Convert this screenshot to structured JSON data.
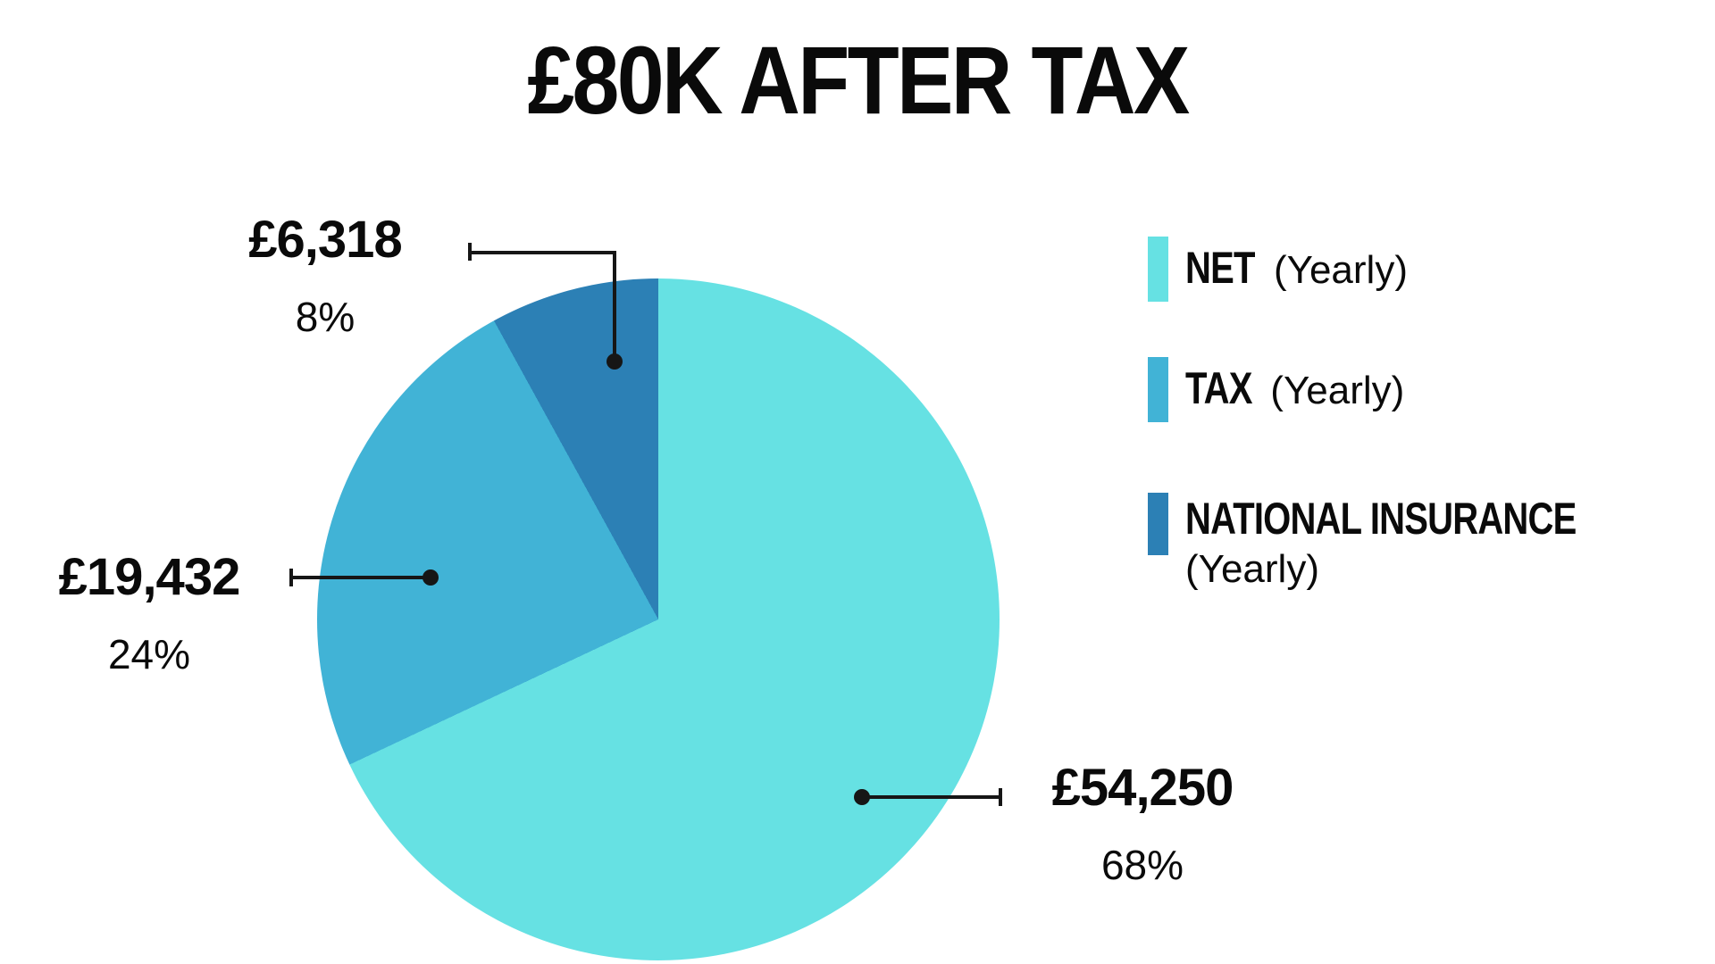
{
  "title": "£80K AFTER TAX",
  "chart_data": {
    "type": "pie",
    "title": "£80K AFTER TAX",
    "currency": "GBP",
    "start_angle_deg": 0,
    "direction": "clockwise",
    "legend_position": "right",
    "background": "#ffffff",
    "leader_line_color": "#161616",
    "slices": [
      {
        "label": "NET",
        "period": "(Yearly)",
        "value": 54250,
        "display_value": "£54,250",
        "pct": 68,
        "pct_label": "68%",
        "color": "#66E1E3"
      },
      {
        "label": "TAX",
        "period": "(Yearly)",
        "value": 19432,
        "display_value": "£19,432",
        "pct": 24,
        "pct_label": "24%",
        "color": "#41B3D6"
      },
      {
        "label": "NATIONAL INSURANCE",
        "period": "(Yearly)",
        "value": 6318,
        "display_value": "£6,318",
        "pct": 8,
        "pct_label": "8%",
        "color": "#2C80B5"
      }
    ]
  }
}
